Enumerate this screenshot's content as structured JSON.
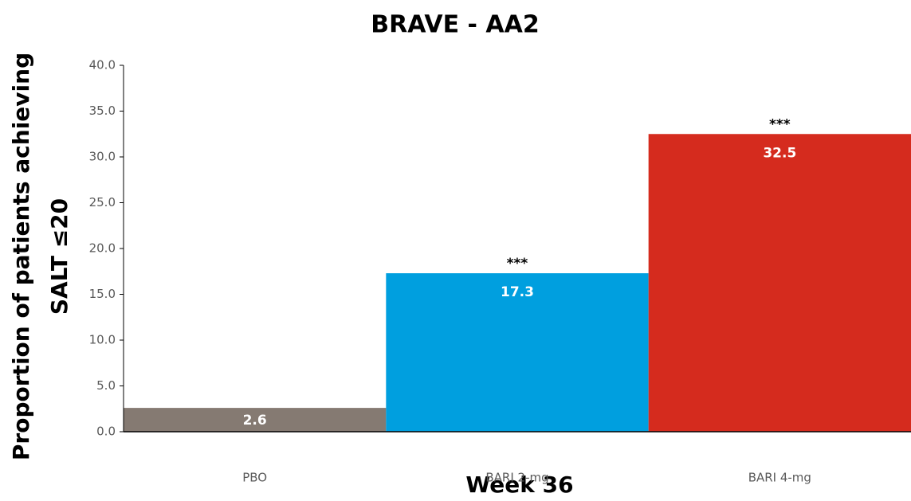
{
  "chart_data": {
    "type": "bar",
    "title": "BRAVE - AA2",
    "xlabel": "Week 36",
    "ylabel": [
      "Proportion of patients achieving",
      "SALT ≤20"
    ],
    "categories": [
      "PBO",
      "BARI 2-mg",
      "BARI 4-mg"
    ],
    "values": [
      2.6,
      17.3,
      32.5
    ],
    "colors": [
      "#857a72",
      "#009fdf",
      "#d52b1e"
    ],
    "annotations": [
      {
        "x": "BARI 2-mg",
        "text": "***"
      },
      {
        "x": "BARI 4-mg",
        "text": "***"
      }
    ],
    "ylim": [
      0,
      40
    ],
    "yticks": [
      {
        "value": 0,
        "label": "0.0"
      },
      {
        "value": 5,
        "label": "5.0"
      },
      {
        "value": 10,
        "label": "10.0"
      },
      {
        "value": 15,
        "label": "15.0"
      },
      {
        "value": 20,
        "label": "20.0"
      },
      {
        "value": 25,
        "label": "25.0"
      },
      {
        "value": 30,
        "label": "30.0"
      },
      {
        "value": 35,
        "label": "35.0"
      },
      {
        "value": 40,
        "label": "40.0"
      }
    ],
    "grid": false
  }
}
